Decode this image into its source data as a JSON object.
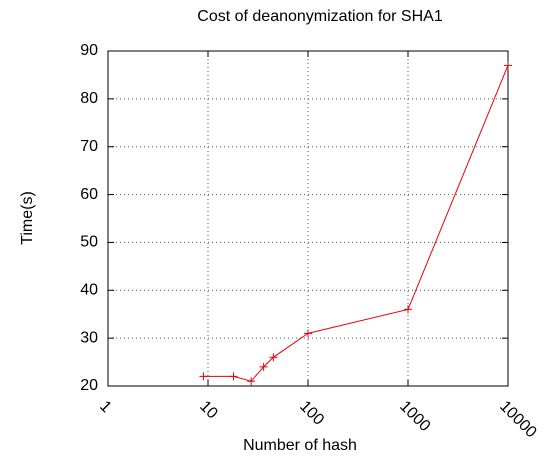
{
  "chart_data": {
    "type": "line",
    "title": "Cost of deanonymization for SHA1",
    "x_label": "Number of hash",
    "y_label": "Time(s)",
    "x": [
      9,
      18,
      27,
      36,
      45,
      100,
      1000,
      10000
    ],
    "series": [
      {
        "name": "SHA1",
        "color": "#e8000b",
        "values": [
          22,
          22,
          21,
          24,
          26,
          31,
          36,
          87
        ]
      }
    ],
    "xscale": "log",
    "xlim": [
      1,
      10000
    ],
    "xticks": [
      1,
      10,
      100,
      1000,
      10000
    ],
    "ylim": [
      20,
      90
    ],
    "yticks": [
      20,
      30,
      40,
      50,
      60,
      70,
      80,
      90
    ],
    "grid": true
  }
}
